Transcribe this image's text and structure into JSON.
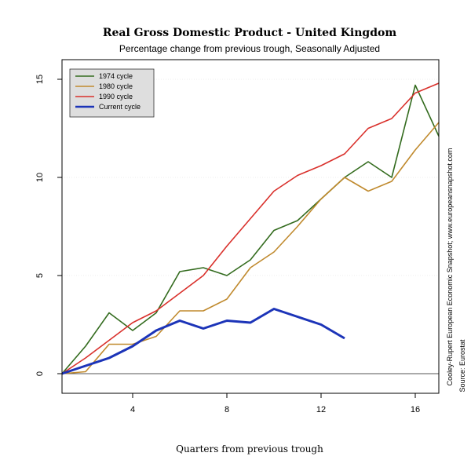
{
  "chart_data": {
    "type": "line",
    "title": "Real Gross Domestic Product - United Kingdom",
    "subtitle": "Percentage change from previous trough, Seasonally Adjusted",
    "xlabel": "Quarters from previous trough",
    "ylabel": "",
    "xlim": [
      1,
      17
    ],
    "ylim": [
      -1,
      16
    ],
    "xticks": [
      4,
      8,
      12,
      16
    ],
    "yticks": [
      0,
      5,
      10,
      15
    ],
    "grid": true,
    "legend_position": "top-left",
    "zero_line": 0,
    "side_notes": [
      "Cooley-Rupert European Economic Snapshot; www.europeansnapshot.com",
      "Source: Eurostat"
    ],
    "series": [
      {
        "name": "1974 cycle",
        "color": "#336b1e",
        "x": [
          1,
          2,
          3,
          4,
          5,
          6,
          7,
          8,
          9,
          10,
          11,
          12,
          13,
          14,
          15,
          16,
          17
        ],
        "values": [
          0,
          1.4,
          3.1,
          2.2,
          3.1,
          5.2,
          5.4,
          5.0,
          5.8,
          7.3,
          7.8,
          8.9,
          10.0,
          10.8,
          10.0,
          14.7,
          12.1
        ]
      },
      {
        "name": "1980 cycle",
        "color": "#c08a2e",
        "x": [
          1,
          2,
          3,
          4,
          5,
          6,
          7,
          8,
          9,
          10,
          11,
          12,
          13,
          14,
          15,
          16,
          17
        ],
        "values": [
          0,
          0.1,
          1.5,
          1.5,
          1.9,
          3.2,
          3.2,
          3.8,
          5.4,
          6.2,
          7.5,
          8.9,
          10.0,
          9.3,
          9.8,
          11.4,
          12.8
        ]
      },
      {
        "name": "1990 cycle",
        "color": "#d9302b",
        "x": [
          1,
          2,
          3,
          4,
          5,
          6,
          7,
          8,
          9,
          10,
          11,
          12,
          13,
          14,
          15,
          16,
          17
        ],
        "values": [
          0,
          0.8,
          1.7,
          2.6,
          3.2,
          4.1,
          5.0,
          6.5,
          7.9,
          9.3,
          10.1,
          10.6,
          11.2,
          12.5,
          13.0,
          14.3,
          14.8
        ]
      },
      {
        "name": "Current cycle",
        "color": "#1c34b8",
        "x": [
          1,
          2,
          3,
          4,
          5,
          6,
          7,
          8,
          9,
          10,
          11,
          12,
          13
        ],
        "values": [
          0,
          0.4,
          0.8,
          1.4,
          2.2,
          2.7,
          2.3,
          2.7,
          2.6,
          3.3,
          2.9,
          2.5,
          1.8
        ]
      }
    ]
  }
}
